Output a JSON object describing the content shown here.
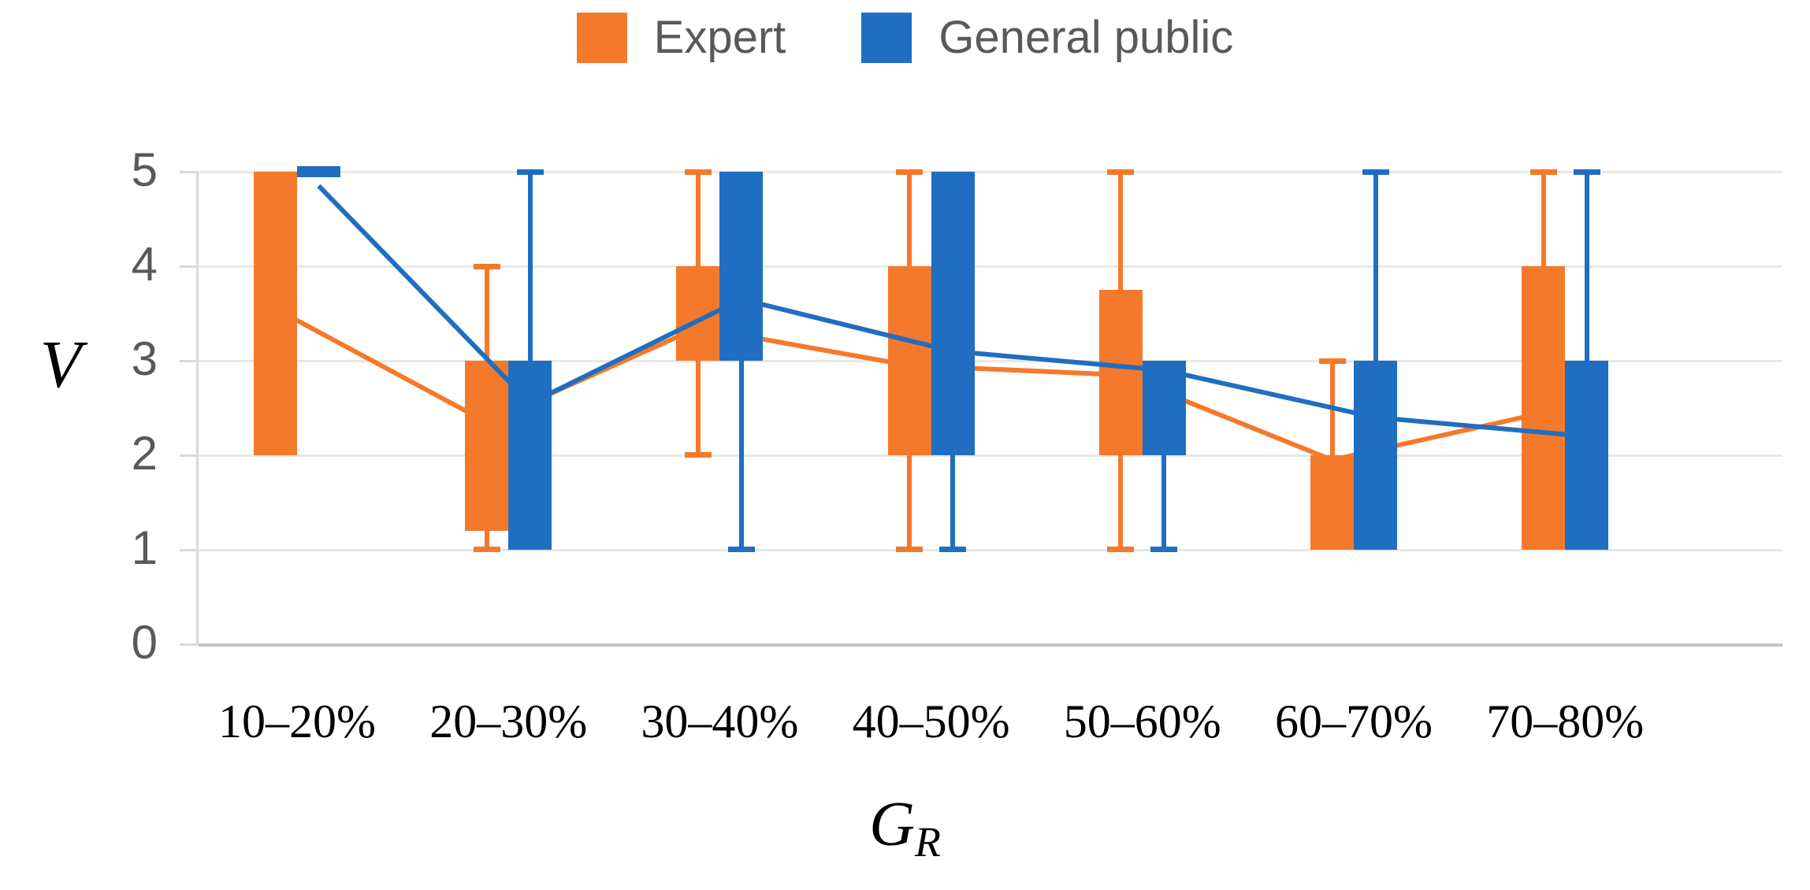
{
  "legend": [
    {
      "label": "Expert",
      "color": "#F5792B"
    },
    {
      "label": "General public",
      "color": "#1F6EC1"
    }
  ],
  "y_axis": {
    "title": "V",
    "ticks": [
      "0",
      "1",
      "2",
      "3",
      "4",
      "5"
    ]
  },
  "x_axis": {
    "title_main": "G",
    "title_sub": "R"
  },
  "chart_data": {
    "type": "box",
    "title": "",
    "xlabel": "GR",
    "ylabel": "V",
    "ylim": [
      0,
      5
    ],
    "grid": true,
    "legend_position": "top-center",
    "categories": [
      "10–20%",
      "20–30%",
      "30–40%",
      "40–50%",
      "50–60%",
      "60–70%",
      "70–80%"
    ],
    "series": [
      {
        "name": "Expert",
        "color": "#F5792B",
        "boxes": [
          {
            "q1": 2,
            "q3": 5,
            "low": null,
            "high": null,
            "mean": 3.55
          },
          {
            "q1": 1.2,
            "q3": 3,
            "low": 1,
            "high": 4,
            "mean": 2.35
          },
          {
            "q1": 3,
            "q3": 4,
            "low": 2,
            "high": 5,
            "mean": 3.35
          },
          {
            "q1": 2,
            "q3": 4,
            "low": 1,
            "high": 5,
            "mean": 2.95
          },
          {
            "q1": 2,
            "q3": 3.75,
            "low": 1,
            "high": 5,
            "mean": 2.85
          },
          {
            "q1": 1,
            "q3": 2,
            "low": null,
            "high": 3,
            "mean": 1.95
          },
          {
            "q1": 1,
            "q3": 4,
            "low": null,
            "high": 5,
            "mean": 2.45
          }
        ]
      },
      {
        "name": "General public",
        "color": "#1F6EC1",
        "boxes": [
          {
            "q1": 5,
            "q3": 5,
            "low": null,
            "high": null,
            "mean": 4.85
          },
          {
            "q1": 1,
            "q3": 3,
            "low": null,
            "high": 5,
            "mean": 2.55
          },
          {
            "q1": 3,
            "q3": 5,
            "low": 1,
            "high": null,
            "mean": 3.65
          },
          {
            "q1": 2,
            "q3": 5,
            "low": 1,
            "high": null,
            "mean": 3.1
          },
          {
            "q1": 2,
            "q3": 3,
            "low": 1,
            "high": null,
            "mean": 2.9
          },
          {
            "q1": 1,
            "q3": 3,
            "low": null,
            "high": 5,
            "mean": 2.4
          },
          {
            "q1": 1,
            "q3": 3,
            "low": null,
            "high": 5,
            "mean": 2.2
          }
        ]
      }
    ]
  }
}
